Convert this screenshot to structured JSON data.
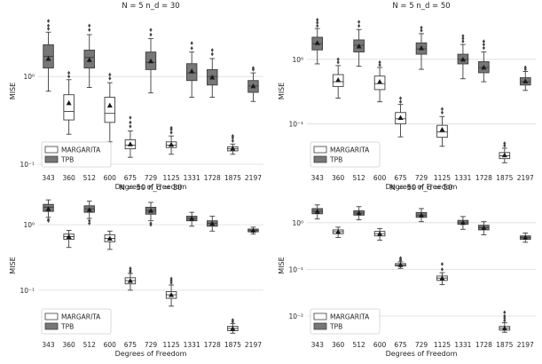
{
  "chart_data": [
    {
      "type": "box",
      "title": "N = 5  n_d = 30",
      "xlabel": "Degrees of Freedom",
      "ylabel": "MISE",
      "yscale": "log",
      "ylim": [
        0.085,
        5.5
      ],
      "yticks": [
        {
          "v": 0.1,
          "label": "10⁻¹"
        },
        {
          "v": 1,
          "label": "10⁰"
        }
      ],
      "categories": [
        "343",
        "360",
        "512",
        "600",
        "675",
        "729",
        "1125",
        "1331",
        "1728",
        "1875",
        "2197"
      ],
      "legend": [
        {
          "name": "MARGARITA",
          "color": "#ffffff"
        },
        {
          "name": "TPB",
          "color": "#777777"
        }
      ],
      "boxes": [
        {
          "x": "343",
          "series": "TPB",
          "whislo": 0.68,
          "q1": 1.25,
          "median": 1.7,
          "mean": 1.6,
          "q3": 2.3,
          "whishi": 3.2,
          "fliers": [
            3.5,
            3.8,
            4.3
          ]
        },
        {
          "x": "360",
          "series": "MARGARITA",
          "whislo": 0.22,
          "q1": 0.32,
          "median": 0.4,
          "mean": 0.5,
          "q3": 0.62,
          "whishi": 0.92,
          "fliers": [
            1.0,
            1.1
          ]
        },
        {
          "x": "512",
          "series": "TPB",
          "whislo": 0.75,
          "q1": 1.25,
          "median": 1.65,
          "mean": 1.55,
          "q3": 2.0,
          "whishi": 3.0,
          "fliers": [
            3.4,
            3.8
          ]
        },
        {
          "x": "600",
          "series": "MARGARITA",
          "whislo": 0.18,
          "q1": 0.3,
          "median": 0.38,
          "mean": 0.47,
          "q3": 0.58,
          "whishi": 0.85,
          "fliers": [
            0.95,
            1.05
          ]
        },
        {
          "x": "675",
          "series": "MARGARITA",
          "whislo": 0.12,
          "q1": 0.15,
          "median": 0.165,
          "mean": 0.17,
          "q3": 0.19,
          "whishi": 0.24,
          "fliers": [
            0.27,
            0.3,
            0.34
          ]
        },
        {
          "x": "729",
          "series": "TPB",
          "whislo": 0.65,
          "q1": 1.2,
          "median": 1.45,
          "mean": 1.5,
          "q3": 1.9,
          "whishi": 2.7,
          "fliers": [
            3.0,
            3.4
          ]
        },
        {
          "x": "1125",
          "series": "MARGARITA",
          "whislo": 0.13,
          "q1": 0.155,
          "median": 0.165,
          "mean": 0.168,
          "q3": 0.18,
          "whishi": 0.21,
          "fliers": [
            0.23,
            0.25,
            0.26
          ]
        },
        {
          "x": "1331",
          "series": "TPB",
          "whislo": 0.58,
          "q1": 0.9,
          "median": 1.1,
          "mean": 1.15,
          "q3": 1.4,
          "whishi": 1.9,
          "fliers": [
            2.1,
            2.4
          ]
        },
        {
          "x": "1728",
          "series": "TPB",
          "whislo": 0.58,
          "q1": 0.8,
          "median": 1.0,
          "mean": 0.98,
          "q3": 1.2,
          "whishi": 1.6,
          "fliers": [
            1.8,
            2.0
          ]
        },
        {
          "x": "1875",
          "series": "MARGARITA",
          "whislo": 0.13,
          "q1": 0.142,
          "median": 0.15,
          "mean": 0.152,
          "q3": 0.158,
          "whishi": 0.17,
          "fliers": [
            0.185,
            0.2,
            0.21
          ]
        },
        {
          "x": "2197",
          "series": "TPB",
          "whislo": 0.52,
          "q1": 0.66,
          "median": 0.78,
          "mean": 0.78,
          "q3": 0.9,
          "whishi": 1.1,
          "fliers": [
            1.2,
            1.25
          ]
        }
      ]
    },
    {
      "type": "box",
      "title": "N = 5  n_d = 50",
      "xlabel": "Degrees of Freedom",
      "ylabel": "MISE",
      "yscale": "log",
      "ylim": [
        0.019,
        5.5
      ],
      "yticks": [
        {
          "v": 0.1,
          "label": "10⁻¹"
        },
        {
          "v": 1,
          "label": "10⁰"
        }
      ],
      "categories": [
        "343",
        "360",
        "512",
        "600",
        "675",
        "729",
        "1125",
        "1331",
        "1728",
        "1875",
        "2197"
      ],
      "legend": [
        {
          "name": "MARGARITA",
          "color": "#ffffff"
        },
        {
          "name": "TPB",
          "color": "#777777"
        }
      ],
      "boxes": [
        {
          "x": "343",
          "series": "TPB",
          "whislo": 0.85,
          "q1": 1.4,
          "median": 1.75,
          "mean": 1.8,
          "q3": 2.2,
          "whishi": 3.0,
          "fliers": [
            3.3,
            3.7,
            4.1
          ]
        },
        {
          "x": "360",
          "series": "MARGARITA",
          "whislo": 0.25,
          "q1": 0.38,
          "median": 0.45,
          "mean": 0.48,
          "q3": 0.58,
          "whishi": 0.8,
          "fliers": [
            0.9,
            1.0
          ]
        },
        {
          "x": "512",
          "series": "TPB",
          "whislo": 0.78,
          "q1": 1.3,
          "median": 1.65,
          "mean": 1.6,
          "q3": 2.0,
          "whishi": 2.9,
          "fliers": [
            3.3,
            3.8
          ]
        },
        {
          "x": "600",
          "series": "MARGARITA",
          "whislo": 0.22,
          "q1": 0.34,
          "median": 0.42,
          "mean": 0.45,
          "q3": 0.55,
          "whishi": 0.75,
          "fliers": [
            0.82,
            0.9
          ]
        },
        {
          "x": "675",
          "series": "MARGARITA",
          "whislo": 0.063,
          "q1": 0.1,
          "median": 0.12,
          "mean": 0.125,
          "q3": 0.15,
          "whishi": 0.2,
          "fliers": [
            0.22,
            0.25
          ]
        },
        {
          "x": "729",
          "series": "TPB",
          "whislo": 0.7,
          "q1": 1.2,
          "median": 1.45,
          "mean": 1.5,
          "q3": 1.8,
          "whishi": 2.5,
          "fliers": [
            2.8,
            3.1
          ]
        },
        {
          "x": "1125",
          "series": "MARGARITA",
          "whislo": 0.045,
          "q1": 0.062,
          "median": 0.075,
          "mean": 0.082,
          "q3": 0.095,
          "whishi": 0.13,
          "fliers": [
            0.15,
            0.17
          ]
        },
        {
          "x": "1331",
          "series": "TPB",
          "whislo": 0.5,
          "q1": 0.85,
          "median": 1.0,
          "mean": 1.0,
          "q3": 1.2,
          "whishi": 1.7,
          "fliers": [
            1.9,
            2.1,
            2.3
          ]
        },
        {
          "x": "1728",
          "series": "TPB",
          "whislo": 0.45,
          "q1": 0.62,
          "median": 0.75,
          "mean": 0.75,
          "q3": 0.92,
          "whishi": 1.3,
          "fliers": [
            1.5,
            1.7,
            1.9
          ]
        },
        {
          "x": "1875",
          "series": "MARGARITA",
          "whislo": 0.025,
          "q1": 0.029,
          "median": 0.032,
          "mean": 0.033,
          "q3": 0.036,
          "whishi": 0.042,
          "fliers": [
            0.046,
            0.05
          ]
        },
        {
          "x": "2197",
          "series": "TPB",
          "whislo": 0.33,
          "q1": 0.4,
          "median": 0.45,
          "mean": 0.46,
          "q3": 0.52,
          "whishi": 0.65,
          "fliers": [
            0.7,
            0.75
          ]
        }
      ]
    },
    {
      "type": "box",
      "title": "N = 50  n_d = 30",
      "xlabel": "Degrees of Freedom",
      "ylabel": "MISE",
      "yscale": "log",
      "ylim": [
        0.019,
        3.0
      ],
      "yticks": [
        {
          "v": 0.1,
          "label": "10⁻¹"
        },
        {
          "v": 1,
          "label": "10⁰"
        }
      ],
      "categories": [
        "343",
        "360",
        "512",
        "600",
        "675",
        "729",
        "1125",
        "1331",
        "1728",
        "1875",
        "2197"
      ],
      "legend": [
        {
          "name": "MARGARITA",
          "color": "#ffffff"
        },
        {
          "name": "TPB",
          "color": "#777777"
        }
      ],
      "boxes": [
        {
          "x": "343",
          "series": "TPB",
          "whislo": 1.3,
          "q1": 1.6,
          "median": 1.85,
          "mean": 1.75,
          "q3": 2.05,
          "whishi": 2.4,
          "fliers": [
            1.15,
            1.2
          ]
        },
        {
          "x": "360",
          "series": "MARGARITA",
          "whislo": 0.45,
          "q1": 0.6,
          "median": 0.66,
          "mean": 0.66,
          "q3": 0.72,
          "whishi": 0.82
        },
        {
          "x": "512",
          "series": "TPB",
          "whislo": 1.25,
          "q1": 1.55,
          "median": 1.75,
          "mean": 1.7,
          "q3": 1.95,
          "whishi": 2.3,
          "fliers": [
            1.05,
            1.15
          ]
        },
        {
          "x": "600",
          "series": "MARGARITA",
          "whislo": 0.42,
          "q1": 0.55,
          "median": 0.62,
          "mean": 0.62,
          "q3": 0.7,
          "whishi": 0.8
        },
        {
          "x": "675",
          "series": "MARGARITA",
          "whislo": 0.1,
          "q1": 0.125,
          "median": 0.14,
          "mean": 0.14,
          "q3": 0.155,
          "whishi": 0.18,
          "fliers": [
            0.19,
            0.2,
            0.215
          ]
        },
        {
          "x": "729",
          "series": "TPB",
          "whislo": 1.15,
          "q1": 1.45,
          "median": 1.65,
          "mean": 1.65,
          "q3": 1.85,
          "whishi": 2.2,
          "fliers": [
            1.0,
            1.05
          ]
        },
        {
          "x": "1125",
          "series": "MARGARITA",
          "whislo": 0.057,
          "q1": 0.075,
          "median": 0.085,
          "mean": 0.085,
          "q3": 0.095,
          "whishi": 0.12,
          "fliers": [
            0.13,
            0.14,
            0.15
          ]
        },
        {
          "x": "1331",
          "series": "TPB",
          "whislo": 0.95,
          "q1": 1.15,
          "median": 1.25,
          "mean": 1.25,
          "q3": 1.35,
          "whishi": 1.55
        },
        {
          "x": "1728",
          "series": "TPB",
          "whislo": 0.8,
          "q1": 0.95,
          "median": 1.05,
          "mean": 1.05,
          "q3": 1.15,
          "whishi": 1.35
        },
        {
          "x": "1875",
          "series": "MARGARITA",
          "whislo": 0.022,
          "q1": 0.024,
          "median": 0.026,
          "mean": 0.026,
          "q3": 0.028,
          "whishi": 0.031,
          "fliers": [
            0.033,
            0.035
          ]
        },
        {
          "x": "2197",
          "series": "TPB",
          "whislo": 0.72,
          "q1": 0.78,
          "median": 0.82,
          "mean": 0.82,
          "q3": 0.86,
          "whishi": 0.92
        }
      ]
    },
    {
      "type": "box",
      "title": "N = 50  n_d = 50",
      "xlabel": "Degrees of Freedom",
      "ylabel": "MISE",
      "yscale": "log",
      "ylim": [
        0.0035,
        4.2
      ],
      "yticks": [
        {
          "v": 0.01,
          "label": "10⁻²"
        },
        {
          "v": 0.1,
          "label": "10⁻¹"
        },
        {
          "v": 1,
          "label": "10⁰"
        }
      ],
      "categories": [
        "343",
        "360",
        "512",
        "600",
        "675",
        "729",
        "1125",
        "1331",
        "1728",
        "1875",
        "2197"
      ],
      "legend": [
        {
          "name": "MARGARITA",
          "color": "#ffffff"
        },
        {
          "name": "TPB",
          "color": "#777777"
        }
      ],
      "boxes": [
        {
          "x": "343",
          "series": "TPB",
          "whislo": 1.2,
          "q1": 1.55,
          "median": 1.75,
          "mean": 1.75,
          "q3": 2.0,
          "whishi": 2.4
        },
        {
          "x": "360",
          "series": "MARGARITA",
          "whislo": 0.48,
          "q1": 0.58,
          "median": 0.64,
          "mean": 0.64,
          "q3": 0.7,
          "whishi": 0.8
        },
        {
          "x": "512",
          "series": "TPB",
          "whislo": 1.15,
          "q1": 1.45,
          "median": 1.6,
          "mean": 1.6,
          "q3": 1.8,
          "whishi": 2.2
        },
        {
          "x": "600",
          "series": "MARGARITA",
          "whislo": 0.42,
          "q1": 0.52,
          "median": 0.58,
          "mean": 0.58,
          "q3": 0.65,
          "whishi": 0.75
        },
        {
          "x": "675",
          "series": "MARGARITA",
          "whislo": 0.105,
          "q1": 0.118,
          "median": 0.125,
          "mean": 0.125,
          "q3": 0.133,
          "whishi": 0.145,
          "fliers": [
            0.155,
            0.165,
            0.175
          ]
        },
        {
          "x": "729",
          "series": "TPB",
          "whislo": 1.05,
          "q1": 1.3,
          "median": 1.45,
          "mean": 1.45,
          "q3": 1.65,
          "whishi": 2.0
        },
        {
          "x": "1125",
          "series": "MARGARITA",
          "whislo": 0.047,
          "q1": 0.058,
          "median": 0.065,
          "mean": 0.065,
          "q3": 0.072,
          "whishi": 0.085,
          "fliers": [
            0.1,
            0.13
          ]
        },
        {
          "x": "1331",
          "series": "TPB",
          "whislo": 0.72,
          "q1": 0.92,
          "median": 1.0,
          "mean": 1.0,
          "q3": 1.12,
          "whishi": 1.35
        },
        {
          "x": "1728",
          "series": "TPB",
          "whislo": 0.55,
          "q1": 0.7,
          "median": 0.78,
          "mean": 0.78,
          "q3": 0.88,
          "whishi": 1.05
        },
        {
          "x": "1875",
          "series": "MARGARITA",
          "whislo": 0.0045,
          "q1": 0.005,
          "median": 0.0055,
          "mean": 0.0055,
          "q3": 0.006,
          "whishi": 0.0072,
          "fliers": [
            0.008,
            0.009,
            0.01,
            0.012
          ]
        },
        {
          "x": "2197",
          "series": "TPB",
          "whislo": 0.38,
          "q1": 0.44,
          "median": 0.48,
          "mean": 0.48,
          "q3": 0.52,
          "whishi": 0.6
        }
      ]
    }
  ]
}
